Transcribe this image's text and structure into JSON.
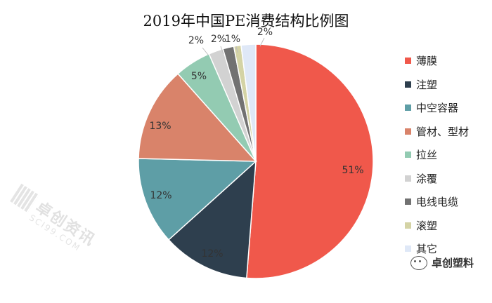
{
  "chart_data": {
    "type": "pie",
    "title": "2019年中国PE消费结构比例图",
    "slices": [
      {
        "label": "薄膜",
        "value": 51,
        "text": "51%",
        "color": "#f0584b"
      },
      {
        "label": "注塑",
        "value": 12,
        "text": "12%",
        "color": "#2e3f4e"
      },
      {
        "label": "中空容器",
        "value": 12,
        "text": "12%",
        "color": "#5e9ea6"
      },
      {
        "label": "管材、型材",
        "value": 13,
        "text": "13%",
        "color": "#d9836a"
      },
      {
        "label": "拉丝",
        "value": 5,
        "text": "5%",
        "color": "#93cbb2"
      },
      {
        "label": "涂覆",
        "value": 2,
        "text": "2%",
        "color": "#d2d2d2"
      },
      {
        "label": "电线电缆",
        "value": 1.5,
        "text": "2%",
        "color": "#727272"
      },
      {
        "label": "滚塑",
        "value": 1,
        "text": "1%",
        "color": "#d4d3a5"
      },
      {
        "label": "其它",
        "value": 2,
        "text": "2%",
        "color": "#dfe8f7"
      }
    ],
    "legend_position": "right"
  },
  "watermark": {
    "title": "卓创资讯",
    "subtitle": "SCI99.COM"
  },
  "brand": {
    "label": "卓创塑料"
  }
}
